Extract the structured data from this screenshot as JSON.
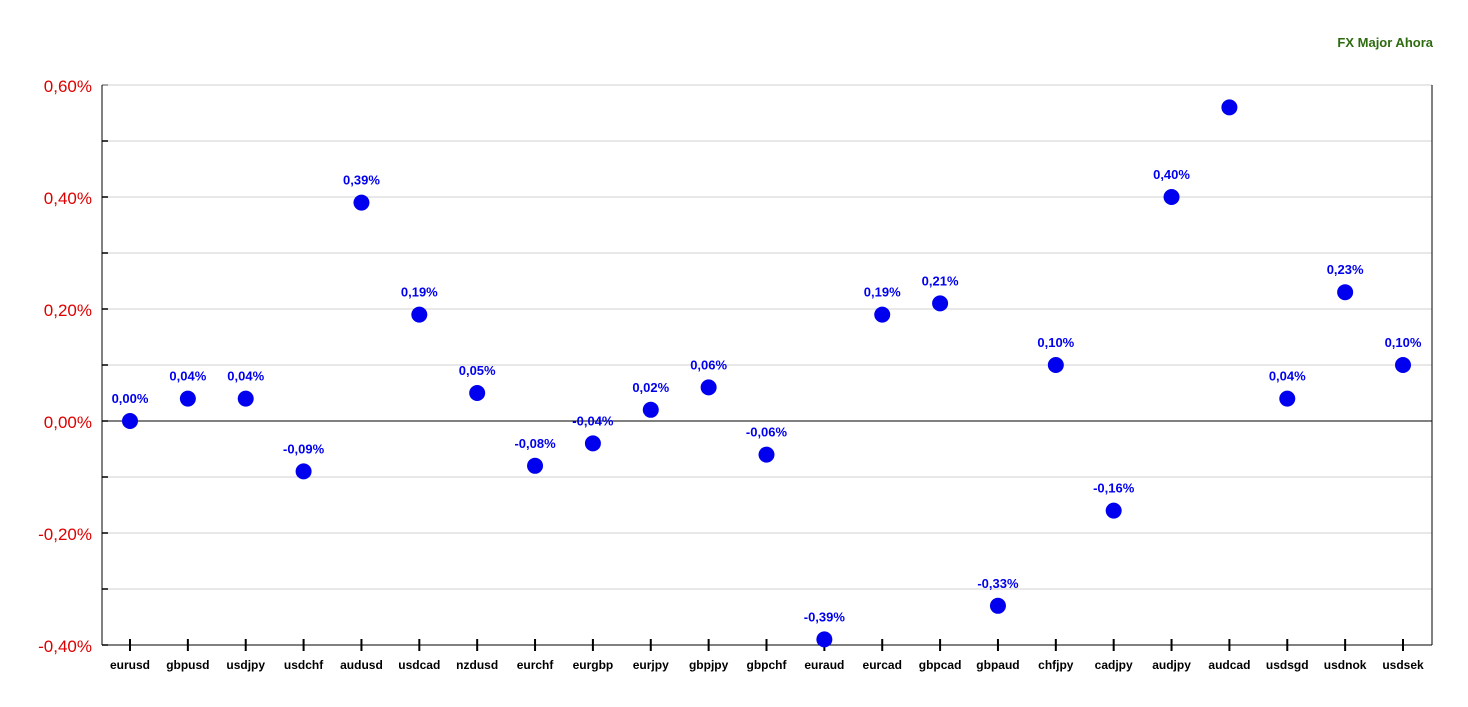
{
  "chart_data": {
    "type": "scatter",
    "title": "FX Major Ahora",
    "categories": [
      "eurusd",
      "gbpusd",
      "usdjpy",
      "usdchf",
      "audusd",
      "usdcad",
      "nzdusd",
      "eurchf",
      "eurgbp",
      "eurjpy",
      "gbpjpy",
      "gbpchf",
      "euraud",
      "eurcad",
      "gbpcad",
      "gbpaud",
      "chfjpy",
      "cadjpy",
      "audjpy",
      "audcad",
      "usdsgd",
      "usdnok",
      "usdsek"
    ],
    "values": [
      0.0,
      0.04,
      0.04,
      -0.09,
      0.39,
      0.19,
      0.05,
      -0.08,
      -0.04,
      0.02,
      0.06,
      -0.06,
      -0.39,
      0.19,
      0.21,
      -0.33,
      0.1,
      -0.16,
      0.4,
      0.56,
      0.04,
      0.23,
      0.1
    ],
    "data_labels": [
      "0,00%",
      "0,04%",
      "0,04%",
      "-0,09%",
      "0,39%",
      "0,19%",
      "0,05%",
      "-0,08%",
      "-0,04%",
      "0,02%",
      "0,06%",
      "-0,06%",
      "-0,39%",
      "0,19%",
      "0,21%",
      "-0,33%",
      "0,10%",
      "-0,16%",
      "0,40%",
      "",
      "0,04%",
      "0,23%",
      "0,10%"
    ],
    "yticks": [
      0.6,
      0.4,
      0.2,
      0.0,
      -0.2,
      -0.4
    ],
    "ytick_labels": [
      "0,60%",
      "0,40%",
      "0,20%",
      "0,00%",
      "-0,20%",
      "-0,40%"
    ],
    "ylim": [
      -0.4,
      0.6
    ],
    "grid": true,
    "colors": {
      "point": "#0000ee",
      "data_label": "#0000ee",
      "ytick_label": "#dd0000",
      "title": "#2e6b0f",
      "grid": "#d0d0d0",
      "axis": "#000000"
    }
  }
}
